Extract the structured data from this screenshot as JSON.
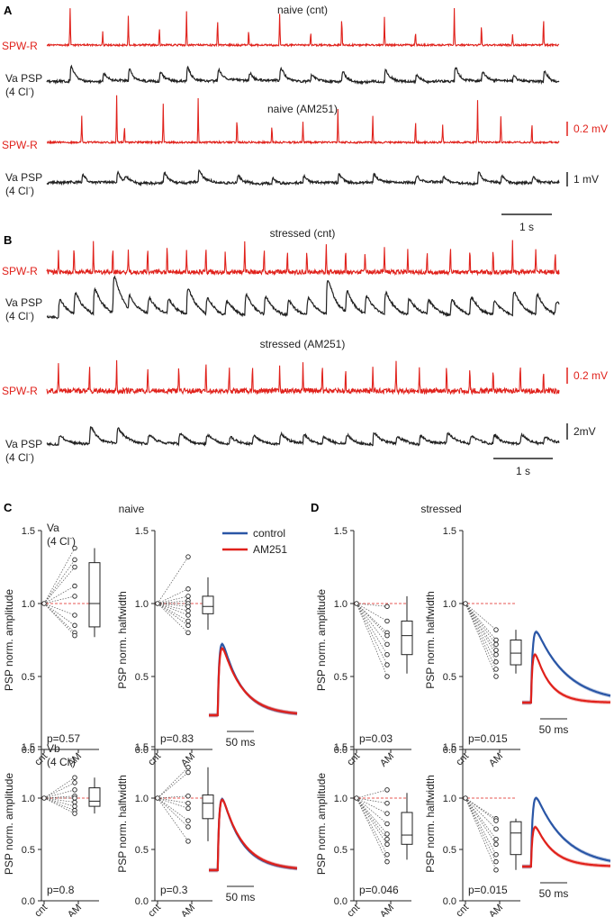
{
  "panels": {
    "A": {
      "letter": "A",
      "sections": [
        {
          "title": "naive (cnt)",
          "spw_label": "SPW-R",
          "psp_label_1": "Va PSP",
          "psp_label_2": "(4 Cl",
          "psp_label_sup": "-",
          "psp_label_3": ")"
        },
        {
          "title": "naive (AM251)",
          "spw_label": "SPW-R",
          "psp_label_1": "Va PSP",
          "psp_label_2": "(4 Cl",
          "psp_label_sup": "-",
          "psp_label_3": ")"
        }
      ],
      "scalebars": {
        "red": "0.2 mV",
        "black": "1 mV",
        "time": "1 s"
      }
    },
    "B": {
      "letter": "B",
      "sections": [
        {
          "title": "stressed (cnt)",
          "spw_label": "SPW-R",
          "psp_label_1": "Va PSP",
          "psp_label_2": "(4 Cl",
          "psp_label_sup": "-",
          "psp_label_3": ")"
        },
        {
          "title": "stressed (AM251)",
          "spw_label": "SPW-R",
          "psp_label_1": "Va PSP",
          "psp_label_2": "(4 Cl",
          "psp_label_sup": "-",
          "psp_label_3": ")"
        }
      ],
      "scalebars": {
        "red": "0.2 mV",
        "black": "2mV",
        "time": "1 s"
      }
    },
    "C": {
      "letter": "C",
      "title": "naive"
    },
    "D": {
      "letter": "D",
      "title": "stressed"
    }
  },
  "legend": {
    "entries": [
      {
        "name": "control",
        "color": "#2a56a6"
      },
      {
        "name": "AM251",
        "color": "#e0211b"
      }
    ]
  },
  "colors": {
    "red": "#e0211b",
    "blue": "#2a56a6",
    "black": "#222222"
  },
  "chart_data": [
    {
      "type": "line",
      "title": "naive (cnt)",
      "series": [
        {
          "name": "SPW-R",
          "color": "#e0211b",
          "event_times": [
            0.3,
            0.72,
            1.05,
            1.45,
            1.8,
            2.2,
            2.6,
            3.0,
            3.4,
            3.8,
            4.35,
            4.75,
            5.25,
            5.6,
            6.0,
            6.4
          ],
          "amplitude": [
            0.28,
            0.1,
            0.22,
            0.14,
            0.26,
            0.2,
            0.12,
            0.24,
            0.1,
            0.2,
            0.22,
            0.1,
            0.28,
            0.16,
            0.08,
            0.2
          ]
        },
        {
          "name": "Va PSP (4 Cl-)",
          "color": "#222222",
          "event_times": [
            0.3,
            0.72,
            1.05,
            1.45,
            1.8,
            2.2,
            2.6,
            3.0,
            3.4,
            3.8,
            4.35,
            4.75,
            5.25,
            5.6,
            6.0,
            6.4
          ],
          "amplitude": [
            1.0,
            0.55,
            0.8,
            0.6,
            0.9,
            0.75,
            0.5,
            0.85,
            0.45,
            0.7,
            0.8,
            0.5,
            0.95,
            0.6,
            0.4,
            0.7
          ]
        }
      ],
      "xlabel": "",
      "ylabel": ""
    },
    {
      "type": "line",
      "title": "naive (AM251)",
      "series": [
        {
          "name": "SPW-R",
          "color": "#e0211b",
          "event_times": [
            0.45,
            0.9,
            1.0,
            1.5,
            1.95,
            2.45,
            2.9,
            3.3,
            3.75,
            4.2,
            4.75,
            5.1,
            5.55,
            5.85,
            6.25
          ],
          "amplitude": [
            0.2,
            0.36,
            0.12,
            0.3,
            0.34,
            0.18,
            0.12,
            0.16,
            0.26,
            0.2,
            0.16,
            0.14,
            0.32,
            0.2,
            0.14
          ]
        },
        {
          "name": "Va PSP (4 Cl-)",
          "color": "#222222",
          "event_times": [
            0.45,
            0.9,
            1.0,
            1.5,
            1.95,
            2.45,
            2.9,
            3.3,
            3.75,
            4.2,
            4.75,
            5.1,
            5.55,
            5.85,
            6.25
          ],
          "amplitude": [
            0.55,
            0.7,
            0.35,
            0.65,
            0.75,
            0.5,
            0.4,
            0.45,
            0.6,
            0.5,
            0.45,
            0.4,
            0.7,
            0.5,
            0.4
          ]
        }
      ],
      "xlabel": "",
      "ylabel": ""
    },
    {
      "type": "line",
      "title": "stressed (cnt)",
      "series": [
        {
          "name": "SPW-R",
          "color": "#e0211b",
          "event_times": [
            0.15,
            0.35,
            0.6,
            0.85,
            1.05,
            1.3,
            1.55,
            1.8,
            2.05,
            2.3,
            2.55,
            2.8,
            3.1,
            3.35,
            3.6,
            3.85,
            4.1,
            4.35,
            4.65,
            4.9,
            5.2,
            5.45,
            5.75,
            6.0,
            6.3,
            6.55
          ],
          "amplitude": [
            0.16,
            0.2,
            0.24,
            0.2,
            0.18,
            0.2,
            0.22,
            0.18,
            0.2,
            0.16,
            0.22,
            0.2,
            0.16,
            0.18,
            0.2,
            0.18,
            0.16,
            0.2,
            0.18,
            0.16,
            0.2,
            0.18,
            0.16,
            0.24,
            0.18,
            0.16
          ]
        },
        {
          "name": "Va PSP (4 Cl-)",
          "color": "#222222",
          "event_times": [
            0.15,
            0.35,
            0.6,
            0.85,
            1.05,
            1.3,
            1.55,
            1.8,
            2.05,
            2.3,
            2.55,
            2.8,
            3.1,
            3.35,
            3.6,
            3.85,
            4.1,
            4.35,
            4.65,
            4.9,
            5.2,
            5.45,
            5.75,
            6.0,
            6.3,
            6.55
          ],
          "amplitude": [
            1.0,
            1.2,
            1.4,
            2.1,
            0.8,
            0.9,
            0.8,
            1.5,
            0.9,
            0.8,
            1.2,
            1.0,
            0.8,
            1.0,
            2.0,
            1.2,
            1.0,
            1.2,
            0.9,
            0.8,
            0.9,
            1.0,
            0.8,
            1.3,
            1.1,
            0.7
          ]
        }
      ],
      "xlabel": "",
      "ylabel": ""
    },
    {
      "type": "line",
      "title": "stressed (AM251)",
      "series": [
        {
          "name": "SPW-R",
          "color": "#e0211b",
          "event_times": [
            0.15,
            0.55,
            0.9,
            1.3,
            1.7,
            2.05,
            2.35,
            2.65,
            3.0,
            3.3,
            3.55,
            3.85,
            4.2,
            4.5,
            4.8,
            5.15,
            5.45,
            5.75,
            6.1,
            6.4
          ],
          "amplitude": [
            0.22,
            0.2,
            0.22,
            0.2,
            0.2,
            0.22,
            0.18,
            0.18,
            0.2,
            0.2,
            0.2,
            0.18,
            0.2,
            0.22,
            0.18,
            0.22,
            0.2,
            0.16,
            0.2,
            0.16
          ]
        },
        {
          "name": "Va PSP (4 Cl-)",
          "color": "#222222",
          "event_times": [
            0.15,
            0.55,
            0.9,
            1.3,
            1.7,
            2.05,
            2.35,
            2.65,
            3.0,
            3.3,
            3.55,
            3.85,
            4.2,
            4.5,
            4.8,
            5.15,
            5.45,
            5.75,
            6.1,
            6.4
          ],
          "amplitude": [
            0.5,
            1.0,
            0.9,
            0.5,
            0.6,
            0.5,
            0.4,
            0.5,
            0.6,
            0.5,
            0.4,
            0.5,
            0.7,
            0.4,
            0.5,
            0.6,
            0.4,
            0.5,
            0.5,
            0.4
          ]
        }
      ],
      "xlabel": "",
      "ylabel": ""
    },
    {
      "type": "scatter",
      "group": "naive",
      "cell": "Va",
      "label_1": "Va",
      "label_2": "(4 Cl",
      "label_sup": "-",
      "label_3": ")",
      "ylabel": "PSP norm. amplitude",
      "ylim": [
        0,
        1.5
      ],
      "yticks": [
        "0.0",
        "0.5",
        "1.0",
        "1.5"
      ],
      "categories": [
        "cnt",
        "AM"
      ],
      "cnt": 1.0,
      "values": [
        1.38,
        1.3,
        1.25,
        1.12,
        1.05,
        0.92,
        0.85,
        0.8,
        0.78
      ],
      "box": {
        "min": 0.77,
        "q1": 0.84,
        "median": 1.0,
        "q3": 1.28,
        "max": 1.38
      },
      "p_label": "p=0.57"
    },
    {
      "type": "scatter",
      "group": "naive",
      "cell": "Va",
      "ylabel": "PSP norm. halfwidth",
      "ylim": [
        0,
        1.5
      ],
      "yticks": [
        "0.0",
        "0.5",
        "1.0",
        "1.5"
      ],
      "categories": [
        "cnt",
        "AM"
      ],
      "cnt": 1.0,
      "values": [
        1.32,
        1.1,
        1.05,
        1.02,
        1.0,
        0.98,
        0.95,
        0.92,
        0.88,
        0.85,
        0.8
      ],
      "box": {
        "min": 0.82,
        "q1": 0.93,
        "median": 0.98,
        "q3": 1.05,
        "max": 1.18
      },
      "p_label": "p=0.83"
    },
    {
      "type": "line",
      "group": "naive",
      "cell": "Va",
      "scale_label": "50 ms",
      "series": [
        {
          "name": "control",
          "color": "#2a56a6",
          "peak": 1.0,
          "decay": 1.0
        },
        {
          "name": "AM251",
          "color": "#e0211b",
          "peak": 0.93,
          "decay": 1.05
        }
      ]
    },
    {
      "type": "scatter",
      "group": "stressed",
      "cell": "Va",
      "ylabel": "PSP norm. amplitude",
      "ylim": [
        0,
        1.5
      ],
      "yticks": [
        "0.0",
        "0.5",
        "1.0",
        "1.5"
      ],
      "categories": [
        "cnt",
        "AM"
      ],
      "cnt": 1.0,
      "values": [
        0.98,
        0.88,
        0.8,
        0.78,
        0.72,
        0.65,
        0.58,
        0.5
      ],
      "box": {
        "min": 0.52,
        "q1": 0.65,
        "median": 0.78,
        "q3": 0.88,
        "max": 1.05
      },
      "p_label": "p=0.03"
    },
    {
      "type": "scatter",
      "group": "stressed",
      "cell": "Va",
      "ylabel": "PSP norm. halfwidth",
      "ylim": [
        0,
        1.5
      ],
      "yticks": [
        "0.0",
        "0.5",
        "1.0",
        "1.5"
      ],
      "categories": [
        "cnt",
        "AM"
      ],
      "cnt": 1.0,
      "values": [
        0.82,
        0.75,
        0.72,
        0.68,
        0.65,
        0.6,
        0.55,
        0.5
      ],
      "box": {
        "min": 0.52,
        "q1": 0.58,
        "median": 0.66,
        "q3": 0.75,
        "max": 0.82
      },
      "p_label": "p=0.015"
    },
    {
      "type": "line",
      "group": "stressed",
      "cell": "Va",
      "scale_label": "50 ms",
      "series": [
        {
          "name": "control",
          "color": "#2a56a6",
          "peak": 1.0,
          "decay": 1.6
        },
        {
          "name": "AM251",
          "color": "#e0211b",
          "peak": 0.8,
          "decay": 0.75
        }
      ]
    },
    {
      "type": "scatter",
      "group": "naive",
      "cell": "Vb",
      "label_1": "Vb",
      "label_2": "(4 Cl",
      "label_sup": "-",
      "label_3": ")",
      "ylabel": "PSP norm. amplitude",
      "ylim": [
        0,
        1.5
      ],
      "yticks": [
        "0.0",
        "0.5",
        "1.0",
        "1.5"
      ],
      "categories": [
        "cnt",
        "AM"
      ],
      "cnt": 1.0,
      "values": [
        1.2,
        1.15,
        1.08,
        1.02,
        1.0,
        0.96,
        0.92,
        0.88,
        0.85
      ],
      "box": {
        "min": 0.85,
        "q1": 0.92,
        "median": 0.97,
        "q3": 1.1,
        "max": 1.2
      },
      "p_label": "p=0.8"
    },
    {
      "type": "scatter",
      "group": "naive",
      "cell": "Vb",
      "ylabel": "PSP norm. halfwidth",
      "ylim": [
        0,
        1.5
      ],
      "yticks": [
        "0.0",
        "0.5",
        "1.0",
        "1.5"
      ],
      "categories": [
        "cnt",
        "AM"
      ],
      "cnt": 1.0,
      "values": [
        1.3,
        1.25,
        1.02,
        0.95,
        0.9,
        0.78,
        0.72,
        0.58
      ],
      "box": {
        "min": 0.58,
        "q1": 0.8,
        "median": 0.95,
        "q3": 1.03,
        "max": 1.3
      },
      "p_label": "p=0.3"
    },
    {
      "type": "line",
      "group": "naive",
      "cell": "Vb",
      "scale_label": "50 ms",
      "series": [
        {
          "name": "control",
          "color": "#2a56a6",
          "peak": 1.0,
          "decay": 1.0
        },
        {
          "name": "AM251",
          "color": "#e0211b",
          "peak": 0.98,
          "decay": 1.05
        }
      ]
    },
    {
      "type": "scatter",
      "group": "stressed",
      "cell": "Vb",
      "ylabel": "PSP norm. amplitude",
      "ylim": [
        0,
        1.5
      ],
      "yticks": [
        "0.0",
        "0.5",
        "1.0",
        "1.5"
      ],
      "categories": [
        "cnt",
        "AM"
      ],
      "cnt": 1.0,
      "values": [
        1.08,
        0.95,
        0.85,
        0.75,
        0.65,
        0.6,
        0.55,
        0.45,
        0.38
      ],
      "box": {
        "min": 0.4,
        "q1": 0.55,
        "median": 0.64,
        "q3": 0.86,
        "max": 1.05
      },
      "p_label": "p=0.046"
    },
    {
      "type": "scatter",
      "group": "stressed",
      "cell": "Vb",
      "ylabel": "PSP norm. halfwidth",
      "ylim": [
        0,
        1.5
      ],
      "yticks": [
        "0.0",
        "0.5",
        "1.0",
        "1.5"
      ],
      "categories": [
        "cnt",
        "AM"
      ],
      "cnt": 1.0,
      "values": [
        0.8,
        0.78,
        0.7,
        0.6,
        0.55,
        0.45,
        0.38,
        0.3
      ],
      "box": {
        "min": 0.3,
        "q1": 0.45,
        "median": 0.66,
        "q3": 0.77,
        "max": 0.8
      },
      "p_label": "p=0.015"
    },
    {
      "type": "line",
      "group": "stressed",
      "cell": "Vb",
      "scale_label": "50 ms",
      "series": [
        {
          "name": "control",
          "color": "#2a56a6",
          "peak": 1.0,
          "decay": 1.5
        },
        {
          "name": "AM251",
          "color": "#e0211b",
          "peak": 0.64,
          "decay": 0.9
        }
      ]
    }
  ]
}
